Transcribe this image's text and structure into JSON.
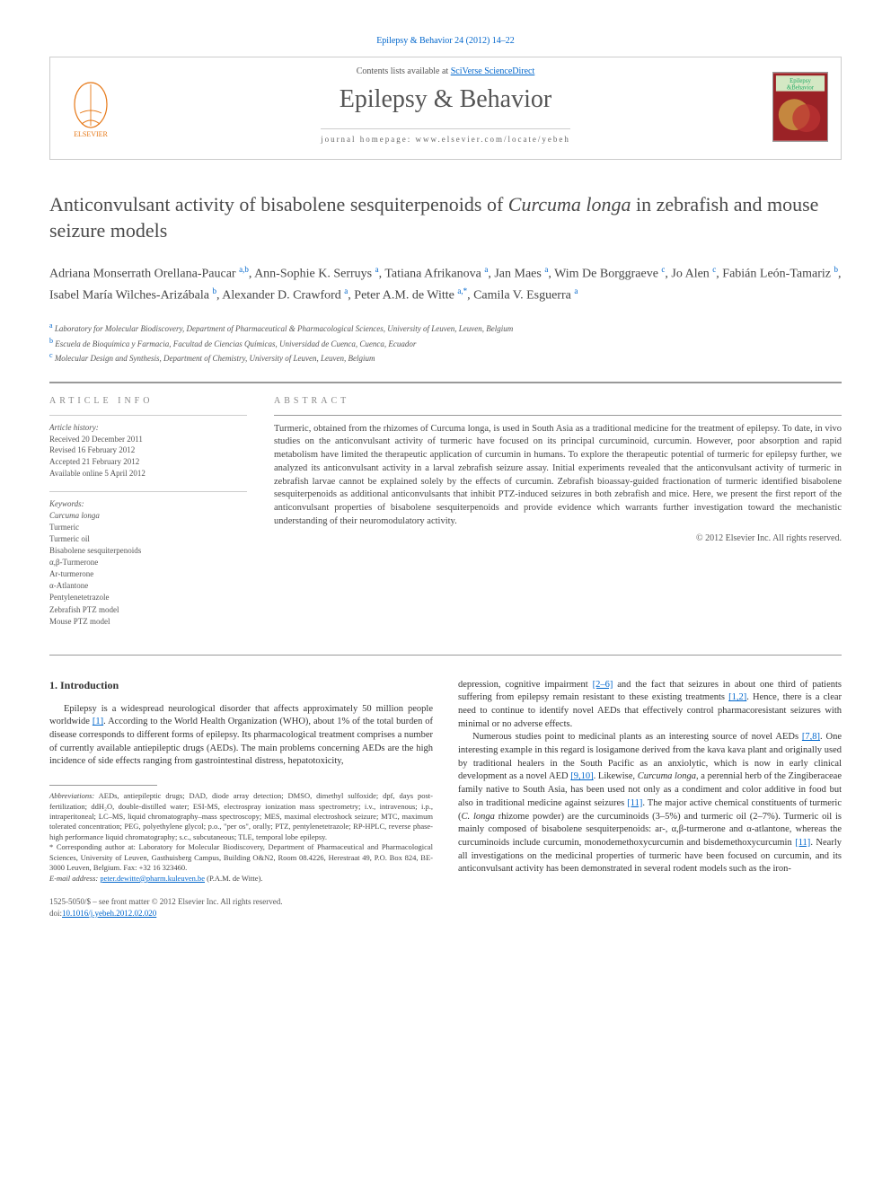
{
  "journal_ref": "Epilepsy & Behavior 24 (2012) 14–22",
  "header": {
    "contents_prefix": "Contents lists available at ",
    "contents_link": "SciVerse ScienceDirect",
    "journal_title": "Epilepsy & Behavior",
    "homepage_prefix": "journal homepage: ",
    "homepage_url": "www.elsevier.com/locate/yebeh",
    "cover_label_top": "Epilepsy",
    "cover_label_bottom": "&Behavior"
  },
  "title_part1": "Anticonvulsant activity of bisabolene sesquiterpenoids of ",
  "title_italic": "Curcuma longa",
  "title_part2": " in zebrafish and mouse seizure models",
  "authors": [
    {
      "name": "Adriana Monserrath Orellana-Paucar",
      "aff": "a,b"
    },
    {
      "name": "Ann-Sophie K. Serruys",
      "aff": "a"
    },
    {
      "name": "Tatiana Afrikanova",
      "aff": "a"
    },
    {
      "name": "Jan Maes",
      "aff": "a"
    },
    {
      "name": "Wim De Borggraeve",
      "aff": "c"
    },
    {
      "name": "Jo Alen",
      "aff": "c"
    },
    {
      "name": "Fabián León-Tamariz",
      "aff": "b"
    },
    {
      "name": "Isabel María Wilches-Arizábala",
      "aff": "b"
    },
    {
      "name": "Alexander D. Crawford",
      "aff": "a"
    },
    {
      "name": "Peter A.M. de Witte",
      "aff": "a,",
      "star": true
    },
    {
      "name": "Camila V. Esguerra",
      "aff": "a"
    }
  ],
  "affiliations": [
    {
      "key": "a",
      "text": "Laboratory for Molecular Biodiscovery, Department of Pharmaceutical & Pharmacological Sciences, University of Leuven, Leuven, Belgium"
    },
    {
      "key": "b",
      "text": "Escuela de Bioquímica y Farmacia, Facultad de Ciencias Químicas, Universidad de Cuenca, Cuenca, Ecuador"
    },
    {
      "key": "c",
      "text": "Molecular Design and Synthesis, Department of Chemistry, University of Leuven, Leuven, Belgium"
    }
  ],
  "meta": {
    "article_info_label": "ARTICLE INFO",
    "abstract_label": "ABSTRACT",
    "history_label": "Article history:",
    "received": "Received 20 December 2011",
    "revised": "Revised 16 February 2012",
    "accepted": "Accepted 21 February 2012",
    "online": "Available online 5 April 2012",
    "keywords_label": "Keywords:",
    "keywords": [
      "Curcuma longa",
      "Turmeric",
      "Turmeric oil",
      "Bisabolene sesquiterpenoids",
      "α,β-Turmerone",
      "Ar-turmerone",
      "α-Atlantone",
      "Pentylenetetrazole",
      "Zebrafish PTZ model",
      "Mouse PTZ model"
    ]
  },
  "abstract": "Turmeric, obtained from the rhizomes of Curcuma longa, is used in South Asia as a traditional medicine for the treatment of epilepsy. To date, in vivo studies on the anticonvulsant activity of turmeric have focused on its principal curcuminoid, curcumin. However, poor absorption and rapid metabolism have limited the therapeutic application of curcumin in humans. To explore the therapeutic potential of turmeric for epilepsy further, we analyzed its anticonvulsant activity in a larval zebrafish seizure assay. Initial experiments revealed that the anticonvulsant activity of turmeric in zebrafish larvae cannot be explained solely by the effects of curcumin. Zebrafish bioassay-guided fractionation of turmeric identified bisabolene sesquiterpenoids as additional anticonvulsants that inhibit PTZ-induced seizures in both zebrafish and mice. Here, we present the first report of the anticonvulsant properties of bisabolene sesquiterpenoids and provide evidence which warrants further investigation toward the mechanistic understanding of their neuromodulatory activity.",
  "abstract_copyright": "© 2012 Elsevier Inc. All rights reserved.",
  "intro": {
    "heading": "1. Introduction",
    "p1a": "Epilepsy is a widespread neurological disorder that affects approximately 50 million people worldwide ",
    "p1_ref1": "[1]",
    "p1b": ". According to the World Health Organization (WHO), about 1% of the total burden of disease corresponds to different forms of epilepsy. Its pharmacological treatment comprises a number of currently available antiepileptic drugs (AEDs). The main problems concerning AEDs are the high incidence of side effects ranging from gastrointestinal distress, hepatotoxicity,",
    "p2a": "depression, cognitive impairment ",
    "p2_ref1": "[2–6]",
    "p2b": " and the fact that seizures in about one third of patients suffering from epilepsy remain resistant to these existing treatments ",
    "p2_ref2": "[1,2]",
    "p2c": ". Hence, there is a clear need to continue to identify novel AEDs that effectively control pharmacoresistant seizures with minimal or no adverse effects.",
    "p3a": "Numerous studies point to medicinal plants as an interesting source of novel AEDs ",
    "p3_ref1": "[7,8]",
    "p3b": ". One interesting example in this regard is losigamone derived from the kava kava plant and originally used by traditional healers in the South Pacific as an anxiolytic, which is now in early clinical development as a novel AED ",
    "p3_ref2": "[9,10]",
    "p3c": ". Likewise, ",
    "p3_it1": "Curcuma longa",
    "p3d": ", a perennial herb of the Zingiberaceae family native to South Asia, has been used not only as a condiment and color additive in food but also in traditional medicine against seizures ",
    "p3_ref3": "[11]",
    "p3e": ". The major active chemical constituents of turmeric (",
    "p3_it2": "C. longa",
    "p3f": " rhizome powder) are the curcuminoids (3–5%) and turmeric oil (2–7%). Turmeric oil is mainly composed of bisabolene sesquiterpenoids: ar-, α,β-turmerone and α-atlantone, whereas the curcuminoids include curcumin, monodemethoxycurcumin and bisdemethoxycurcumin ",
    "p3_ref4": "[11]",
    "p3g": ". Nearly all investigations on the medicinal properties of turmeric have been focused on curcumin, and its anticonvulsant activity has been demonstrated in several rodent models such as the iron-"
  },
  "footnotes": {
    "abbrev_label": "Abbreviations:",
    "abbrev": " AEDs, antiepileptic drugs; DAD, diode array detection; DMSO, dimethyl sulfoxide; dpf, days post-fertilization; ddH₂O, double-distilled water; ESI-MS, electrospray ionization mass spectrometry; i.v., intravenous; i.p., intraperitoneal; LC–MS, liquid chromatography–mass spectroscopy; MES, maximal electroshock seizure; MTC, maximum tolerated concentration; PEG, polyethylene glycol; p.o., \"per os\", orally; PTZ, pentylenetetrazole; RP-HPLC, reverse phase-high performance liquid chromatography; s.c., subcutaneous; TLE, temporal lobe epilepsy.",
    "corr_label": "* Corresponding author at:",
    "corr": " Laboratory for Molecular Biodiscovery, Department of Pharmaceutical and Pharmacological Sciences, University of Leuven, Gasthuisberg Campus, Building O&N2, Room 08.4226, Herestraat 49, P.O. Box 824, BE-3000 Leuven, Belgium. Fax: +32 16 323460.",
    "email_label": "E-mail address: ",
    "email": "peter.dewitte@pharm.kuleuven.be",
    "email_name": " (P.A.M. de Witte)."
  },
  "footer": {
    "copyright": "1525-5050/$ – see front matter © 2012 Elsevier Inc. All rights reserved.",
    "doi_prefix": "doi:",
    "doi": "10.1016/j.yebeh.2012.02.020"
  },
  "colors": {
    "link": "#0066cc",
    "text": "#333333",
    "muted": "#555555",
    "border": "#cccccc"
  }
}
